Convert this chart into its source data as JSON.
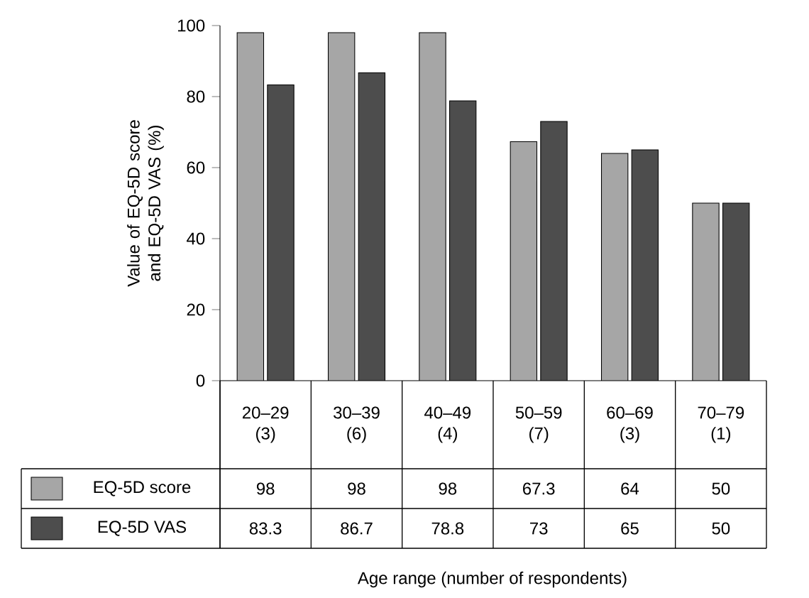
{
  "chart_data": {
    "type": "bar",
    "annotations": [
      "Age range (number of respondents)"
    ],
    "ylabel": "Value of EQ-5D score and EQ-5D VAS (%)",
    "categories": [
      "20–29 (3)",
      "30–39 (6)",
      "40–49 (4)",
      "50–59 (7)",
      "60–69 (3)",
      "70–79 (1)"
    ],
    "series": [
      {
        "name": "EQ-5D score",
        "color": "#a6a6a6",
        "values": [
          98,
          98,
          98,
          67.3,
          64,
          50
        ]
      },
      {
        "name": "EQ-5D VAS",
        "color": "#4d4d4d",
        "values": [
          83.3,
          86.7,
          78.8,
          73,
          65,
          50
        ]
      }
    ],
    "ylim": [
      0,
      100
    ],
    "yticks": [
      0,
      20,
      40,
      60,
      80,
      100
    ],
    "data_labels": true,
    "legend": "bottom"
  }
}
